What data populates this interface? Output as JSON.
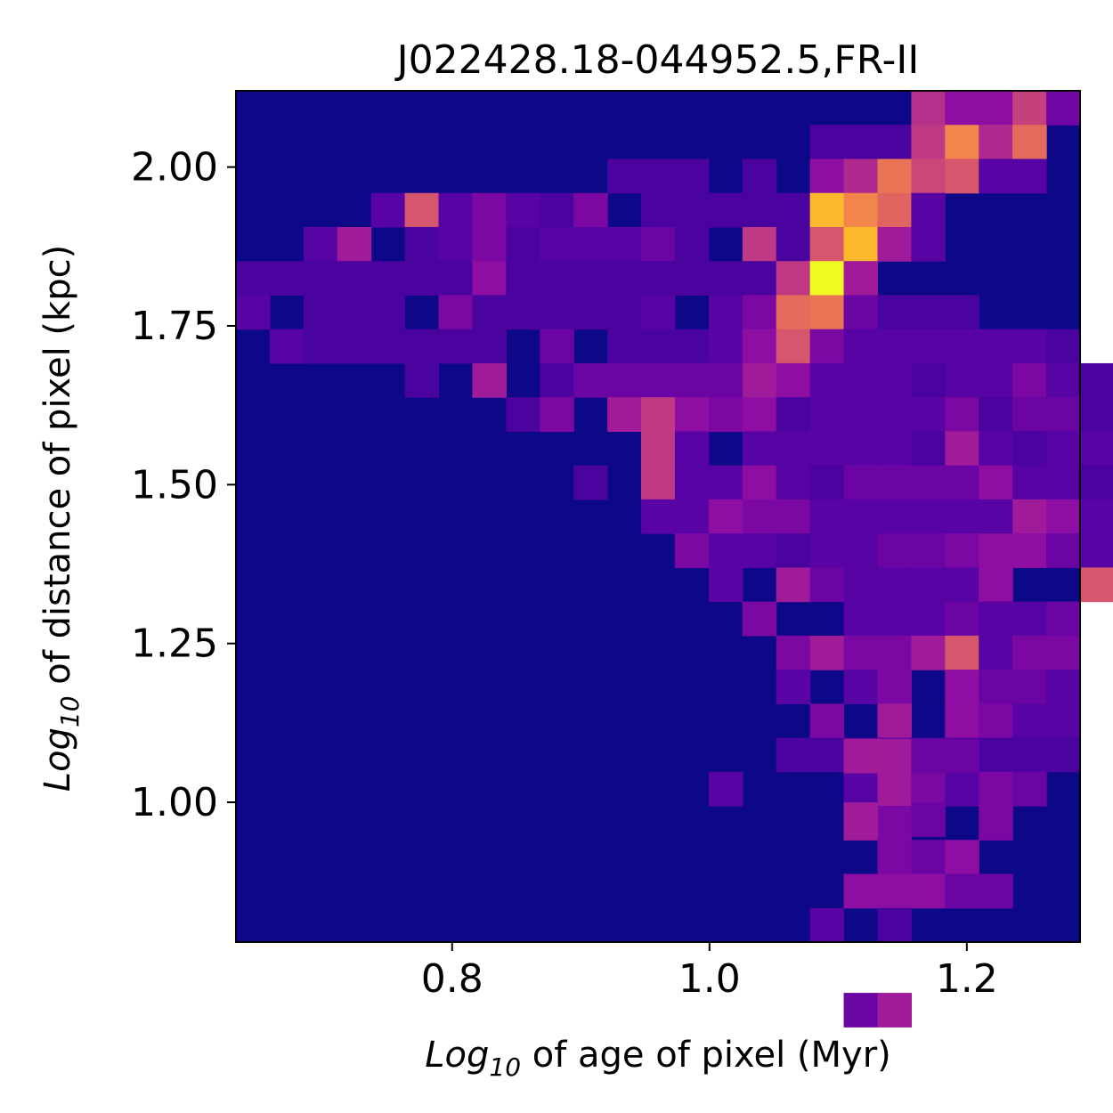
{
  "chart_data": {
    "type": "heatmap",
    "title": "J022428.18-044952.5,FR-II",
    "xlabel": {
      "prefix": "Log",
      "sub": "10",
      "rest": " of age of pixel (Myr)"
    },
    "ylabel": {
      "prefix": "Log",
      "sub": "10",
      "rest": " of distance of pixel (kpc)"
    },
    "xlim": [
      0.632,
      1.288
    ],
    "ylim": [
      0.78,
      2.12
    ],
    "xticks": [
      {
        "value": 0.8,
        "label": "0.8"
      },
      {
        "value": 1.0,
        "label": "1.0"
      },
      {
        "value": 1.2,
        "label": "1.2"
      }
    ],
    "yticks": [
      {
        "value": 1.0,
        "label": "1.00"
      },
      {
        "value": 1.25,
        "label": "1.25"
      },
      {
        "value": 1.5,
        "label": "1.50"
      },
      {
        "value": 1.75,
        "label": "1.75"
      },
      {
        "value": 2.0,
        "label": "2.00"
      }
    ],
    "colormap": "plasma",
    "background_color": "#0d0887",
    "grid": false,
    "n_cols": 25,
    "n_rows": 25,
    "bin_width_x": 0.02624,
    "bin_height_y": 0.0536,
    "value_max": 1.0,
    "cells": [
      [
        21,
        24,
        0.42
      ],
      [
        22,
        24,
        0.3
      ],
      [
        23,
        24,
        0.3
      ],
      [
        24,
        24,
        0.48
      ],
      [
        25,
        24,
        0.22
      ],
      [
        18,
        23,
        0.12
      ],
      [
        19,
        23,
        0.12
      ],
      [
        20,
        23,
        0.12
      ],
      [
        21,
        23,
        0.45
      ],
      [
        22,
        23,
        0.7
      ],
      [
        23,
        23,
        0.4
      ],
      [
        24,
        23,
        0.62
      ],
      [
        12,
        22,
        0.12
      ],
      [
        13,
        22,
        0.12
      ],
      [
        14,
        22,
        0.12
      ],
      [
        16,
        22,
        0.12
      ],
      [
        18,
        22,
        0.3
      ],
      [
        19,
        22,
        0.4
      ],
      [
        20,
        22,
        0.65
      ],
      [
        21,
        22,
        0.5
      ],
      [
        22,
        22,
        0.55
      ],
      [
        23,
        22,
        0.15
      ],
      [
        24,
        22,
        0.15
      ],
      [
        5,
        21,
        0.15
      ],
      [
        6,
        21,
        0.55
      ],
      [
        7,
        21,
        0.15
      ],
      [
        8,
        21,
        0.25
      ],
      [
        9,
        21,
        0.15
      ],
      [
        10,
        21,
        0.12
      ],
      [
        11,
        21,
        0.25
      ],
      [
        13,
        21,
        0.12
      ],
      [
        14,
        21,
        0.12
      ],
      [
        15,
        21,
        0.12
      ],
      [
        16,
        21,
        0.12
      ],
      [
        17,
        21,
        0.12
      ],
      [
        18,
        21,
        0.85
      ],
      [
        19,
        21,
        0.7
      ],
      [
        20,
        21,
        0.6
      ],
      [
        21,
        21,
        0.15
      ],
      [
        3,
        20,
        0.15
      ],
      [
        4,
        20,
        0.35
      ],
      [
        6,
        20,
        0.12
      ],
      [
        7,
        20,
        0.15
      ],
      [
        8,
        20,
        0.25
      ],
      [
        9,
        20,
        0.12
      ],
      [
        10,
        20,
        0.15
      ],
      [
        11,
        20,
        0.15
      ],
      [
        12,
        20,
        0.15
      ],
      [
        13,
        20,
        0.2
      ],
      [
        14,
        20,
        0.12
      ],
      [
        16,
        20,
        0.45
      ],
      [
        17,
        20,
        0.12
      ],
      [
        18,
        20,
        0.55
      ],
      [
        19,
        20,
        0.85
      ],
      [
        20,
        20,
        0.35
      ],
      [
        21,
        20,
        0.15
      ],
      [
        1,
        19,
        0.12
      ],
      [
        2,
        19,
        0.12
      ],
      [
        3,
        19,
        0.12
      ],
      [
        4,
        19,
        0.12
      ],
      [
        5,
        19,
        0.12
      ],
      [
        6,
        19,
        0.12
      ],
      [
        7,
        19,
        0.12
      ],
      [
        8,
        19,
        0.3
      ],
      [
        9,
        19,
        0.12
      ],
      [
        10,
        19,
        0.12
      ],
      [
        11,
        19,
        0.12
      ],
      [
        12,
        19,
        0.12
      ],
      [
        13,
        19,
        0.12
      ],
      [
        14,
        19,
        0.12
      ],
      [
        15,
        19,
        0.12
      ],
      [
        16,
        19,
        0.12
      ],
      [
        17,
        19,
        0.45
      ],
      [
        18,
        19,
        1.0
      ],
      [
        19,
        19,
        0.35
      ],
      [
        1,
        18,
        0.15
      ],
      [
        3,
        18,
        0.12
      ],
      [
        4,
        18,
        0.12
      ],
      [
        5,
        18,
        0.12
      ],
      [
        7,
        18,
        0.25
      ],
      [
        8,
        18,
        0.12
      ],
      [
        9,
        18,
        0.12
      ],
      [
        10,
        18,
        0.12
      ],
      [
        11,
        18,
        0.12
      ],
      [
        12,
        18,
        0.12
      ],
      [
        13,
        18,
        0.15
      ],
      [
        15,
        18,
        0.15
      ],
      [
        16,
        18,
        0.25
      ],
      [
        17,
        18,
        0.62
      ],
      [
        18,
        18,
        0.65
      ],
      [
        19,
        18,
        0.2
      ],
      [
        20,
        18,
        0.12
      ],
      [
        21,
        18,
        0.12
      ],
      [
        22,
        18,
        0.12
      ],
      [
        2,
        17,
        0.15
      ],
      [
        3,
        17,
        0.12
      ],
      [
        4,
        17,
        0.12
      ],
      [
        5,
        17,
        0.12
      ],
      [
        6,
        17,
        0.12
      ],
      [
        7,
        17,
        0.12
      ],
      [
        8,
        17,
        0.12
      ],
      [
        10,
        17,
        0.2
      ],
      [
        12,
        17,
        0.12
      ],
      [
        13,
        17,
        0.12
      ],
      [
        14,
        17,
        0.12
      ],
      [
        15,
        17,
        0.15
      ],
      [
        16,
        17,
        0.3
      ],
      [
        17,
        17,
        0.55
      ],
      [
        18,
        17,
        0.25
      ],
      [
        19,
        17,
        0.15
      ],
      [
        20,
        17,
        0.15
      ],
      [
        21,
        17,
        0.15
      ],
      [
        22,
        17,
        0.15
      ],
      [
        23,
        17,
        0.15
      ],
      [
        24,
        17,
        0.15
      ],
      [
        25,
        17,
        0.12
      ],
      [
        6,
        16,
        0.12
      ],
      [
        8,
        16,
        0.35
      ],
      [
        10,
        16,
        0.12
      ],
      [
        11,
        16,
        0.2
      ],
      [
        12,
        16,
        0.2
      ],
      [
        13,
        16,
        0.2
      ],
      [
        14,
        16,
        0.2
      ],
      [
        15,
        16,
        0.2
      ],
      [
        16,
        16,
        0.35
      ],
      [
        17,
        16,
        0.3
      ],
      [
        18,
        16,
        0.15
      ],
      [
        19,
        16,
        0.15
      ],
      [
        20,
        16,
        0.15
      ],
      [
        21,
        16,
        0.12
      ],
      [
        22,
        16,
        0.15
      ],
      [
        23,
        16,
        0.15
      ],
      [
        24,
        16,
        0.25
      ],
      [
        25,
        16,
        0.15
      ],
      [
        26,
        16,
        0.12
      ],
      [
        9,
        15,
        0.12
      ],
      [
        10,
        15,
        0.25
      ],
      [
        12,
        15,
        0.35
      ],
      [
        13,
        15,
        0.45
      ],
      [
        14,
        15,
        0.3
      ],
      [
        15,
        15,
        0.25
      ],
      [
        16,
        15,
        0.3
      ],
      [
        17,
        15,
        0.12
      ],
      [
        18,
        15,
        0.15
      ],
      [
        19,
        15,
        0.15
      ],
      [
        20,
        15,
        0.15
      ],
      [
        21,
        15,
        0.15
      ],
      [
        22,
        15,
        0.25
      ],
      [
        23,
        15,
        0.12
      ],
      [
        24,
        15,
        0.2
      ],
      [
        25,
        15,
        0.2
      ],
      [
        26,
        15,
        0.12
      ],
      [
        13,
        14,
        0.45
      ],
      [
        14,
        14,
        0.15
      ],
      [
        16,
        14,
        0.15
      ],
      [
        17,
        14,
        0.15
      ],
      [
        18,
        14,
        0.15
      ],
      [
        19,
        14,
        0.15
      ],
      [
        20,
        14,
        0.15
      ],
      [
        21,
        14,
        0.12
      ],
      [
        22,
        14,
        0.35
      ],
      [
        23,
        14,
        0.15
      ],
      [
        24,
        14,
        0.12
      ],
      [
        25,
        14,
        0.15
      ],
      [
        26,
        14,
        0.15
      ],
      [
        11,
        13,
        0.12
      ],
      [
        13,
        13,
        0.45
      ],
      [
        14,
        13,
        0.15
      ],
      [
        15,
        13,
        0.15
      ],
      [
        16,
        13,
        0.3
      ],
      [
        17,
        13,
        0.15
      ],
      [
        18,
        13,
        0.12
      ],
      [
        19,
        13,
        0.2
      ],
      [
        20,
        13,
        0.2
      ],
      [
        21,
        13,
        0.2
      ],
      [
        22,
        13,
        0.2
      ],
      [
        23,
        13,
        0.3
      ],
      [
        24,
        13,
        0.15
      ],
      [
        25,
        13,
        0.15
      ],
      [
        26,
        13,
        0.12
      ],
      [
        13,
        12,
        0.15
      ],
      [
        14,
        12,
        0.15
      ],
      [
        15,
        12,
        0.3
      ],
      [
        16,
        12,
        0.25
      ],
      [
        17,
        12,
        0.25
      ],
      [
        18,
        12,
        0.15
      ],
      [
        19,
        12,
        0.15
      ],
      [
        20,
        12,
        0.15
      ],
      [
        21,
        12,
        0.15
      ],
      [
        22,
        12,
        0.15
      ],
      [
        23,
        12,
        0.15
      ],
      [
        24,
        12,
        0.35
      ],
      [
        25,
        12,
        0.3
      ],
      [
        26,
        12,
        0.15
      ],
      [
        27,
        12,
        0.35
      ],
      [
        14,
        11,
        0.25
      ],
      [
        15,
        11,
        0.15
      ],
      [
        16,
        11,
        0.15
      ],
      [
        17,
        11,
        0.12
      ],
      [
        18,
        11,
        0.15
      ],
      [
        19,
        11,
        0.15
      ],
      [
        20,
        11,
        0.2
      ],
      [
        21,
        11,
        0.2
      ],
      [
        22,
        11,
        0.25
      ],
      [
        23,
        11,
        0.3
      ],
      [
        24,
        11,
        0.3
      ],
      [
        25,
        11,
        0.2
      ],
      [
        26,
        11,
        0.15
      ],
      [
        27,
        11,
        0.15
      ],
      [
        15,
        10,
        0.15
      ],
      [
        17,
        10,
        0.35
      ],
      [
        18,
        10,
        0.2
      ],
      [
        19,
        10,
        0.15
      ],
      [
        20,
        10,
        0.15
      ],
      [
        21,
        10,
        0.15
      ],
      [
        22,
        10,
        0.15
      ],
      [
        23,
        10,
        0.3
      ],
      [
        26,
        10,
        0.55
      ],
      [
        16,
        9,
        0.25
      ],
      [
        19,
        9,
        0.15
      ],
      [
        20,
        9,
        0.15
      ],
      [
        21,
        9,
        0.15
      ],
      [
        22,
        9,
        0.2
      ],
      [
        23,
        9,
        0.15
      ],
      [
        24,
        9,
        0.15
      ],
      [
        25,
        9,
        0.2
      ],
      [
        17,
        8,
        0.25
      ],
      [
        18,
        8,
        0.35
      ],
      [
        19,
        8,
        0.25
      ],
      [
        20,
        8,
        0.25
      ],
      [
        21,
        8,
        0.35
      ],
      [
        22,
        8,
        0.55
      ],
      [
        23,
        8,
        0.15
      ],
      [
        24,
        8,
        0.25
      ],
      [
        25,
        8,
        0.25
      ],
      [
        17,
        7,
        0.15
      ],
      [
        19,
        7,
        0.15
      ],
      [
        20,
        7,
        0.25
      ],
      [
        22,
        7,
        0.3
      ],
      [
        23,
        7,
        0.2
      ],
      [
        24,
        7,
        0.2
      ],
      [
        25,
        7,
        0.15
      ],
      [
        18,
        6,
        0.25
      ],
      [
        20,
        6,
        0.35
      ],
      [
        22,
        6,
        0.3
      ],
      [
        23,
        6,
        0.25
      ],
      [
        24,
        6,
        0.15
      ],
      [
        25,
        6,
        0.15
      ],
      [
        17,
        5,
        0.12
      ],
      [
        18,
        5,
        0.12
      ],
      [
        19,
        5,
        0.12
      ],
      [
        20,
        5,
        0.12
      ],
      [
        21,
        5,
        0.12
      ],
      [
        22,
        5,
        0.12
      ],
      [
        23,
        5,
        0.12
      ],
      [
        24,
        5,
        0.12
      ],
      [
        25,
        5,
        0.12
      ],
      [
        15,
        4,
        0.15
      ],
      [
        19,
        4,
        0.15
      ],
      [
        20,
        4,
        0.35
      ],
      [
        21,
        4,
        0.25
      ],
      [
        22,
        4,
        0.15
      ],
      [
        23,
        4,
        0.25
      ],
      [
        24,
        4,
        0.2
      ],
      [
        19,
        3,
        0.35
      ],
      [
        20,
        3,
        0.25
      ],
      [
        23,
        3,
        0.25
      ],
      [
        20,
        2,
        0.25
      ],
      [
        21,
        2,
        0.2
      ],
      [
        22,
        2,
        0.3
      ],
      [
        19,
        1,
        0.3
      ],
      [
        20,
        1,
        0.3
      ],
      [
        21,
        1,
        0.3
      ],
      [
        22,
        1,
        0.2
      ],
      [
        23,
        1,
        0.2
      ],
      [
        18,
        0,
        0.15
      ],
      [
        20,
        0,
        0.12
      ]
    ],
    "extra_cells_lower": [
      [
        19,
        0.85,
        0.35
      ],
      [
        20,
        0.85,
        0.35
      ],
      [
        21,
        0.85,
        0.2
      ],
      [
        22,
        0.85,
        0.2
      ],
      [
        19,
        0.75,
        0.35
      ],
      [
        21,
        0.75,
        0.2
      ],
      [
        19,
        0.45,
        0.2
      ],
      [
        20,
        0.45,
        0.35
      ],
      [
        20,
        0.25,
        0.5
      ]
    ]
  }
}
